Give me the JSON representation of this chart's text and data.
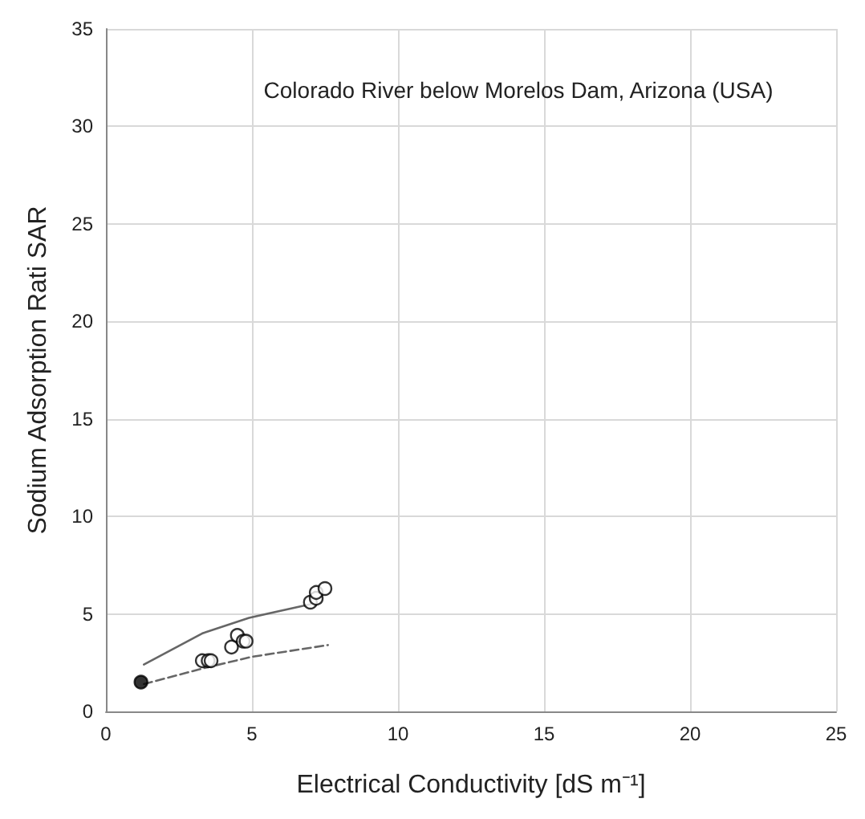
{
  "chart_data": {
    "type": "scatter",
    "title": "Colorado River below Morelos Dam, Arizona (USA)",
    "xlabel": "Electrical Conductivity [dS m⁻¹]",
    "ylabel": "Sodium Adsorption Rati SAR",
    "xlim": [
      0,
      25
    ],
    "xticks": [
      0,
      5,
      10,
      15,
      20,
      25
    ],
    "ylim": [
      0,
      35
    ],
    "yticks": [
      0,
      5,
      10,
      15,
      20,
      25,
      30,
      35
    ],
    "grid": true,
    "series": [
      {
        "type": "line",
        "color": "#666666",
        "line_style": "solid",
        "marker": "none",
        "x": [
          1.3,
          3.3,
          4.9,
          7.0
        ],
        "values": [
          2.4,
          4.0,
          4.8,
          5.5
        ]
      },
      {
        "type": "line",
        "color": "#666666",
        "line_style": "dashed",
        "marker": "none",
        "x": [
          1.3,
          3.3,
          5.0,
          7.6
        ],
        "values": [
          1.4,
          2.2,
          2.8,
          3.4
        ]
      },
      {
        "color": "#ffffff",
        "marker": "circle",
        "x": [
          3.3,
          3.5,
          3.6,
          4.3,
          4.5,
          4.7,
          4.8,
          7.0,
          7.2,
          7.2,
          7.5
        ],
        "values": [
          2.6,
          2.6,
          2.6,
          3.3,
          3.9,
          3.6,
          3.6,
          5.6,
          5.8,
          6.1,
          6.3
        ]
      },
      {
        "color": "#000000",
        "marker": "circle",
        "x": [
          1.2
        ],
        "values": [
          1.5
        ]
      }
    ]
  }
}
